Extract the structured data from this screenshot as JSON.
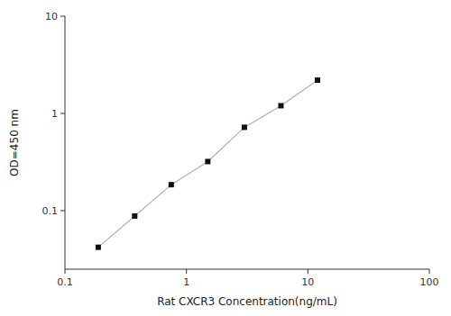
{
  "chart_data": {
    "type": "line",
    "x": [
      0.188,
      0.375,
      0.75,
      1.5,
      3.0,
      6.0,
      12.0
    ],
    "values": [
      0.042,
      0.088,
      0.185,
      0.32,
      0.72,
      1.2,
      2.2
    ],
    "xlabel": "Rat CXCR3 Concentration(ng/mL)",
    "ylabel": "OD=450 nm",
    "xlim": [
      0.1,
      100
    ],
    "ylim": [
      0.025,
      10
    ],
    "xticks": [
      0.1,
      1,
      10,
      100
    ],
    "yticks": [
      0.1,
      1,
      10
    ],
    "log": true,
    "grid": false,
    "color": "#111111",
    "marker": "square",
    "line_style": "solid"
  }
}
